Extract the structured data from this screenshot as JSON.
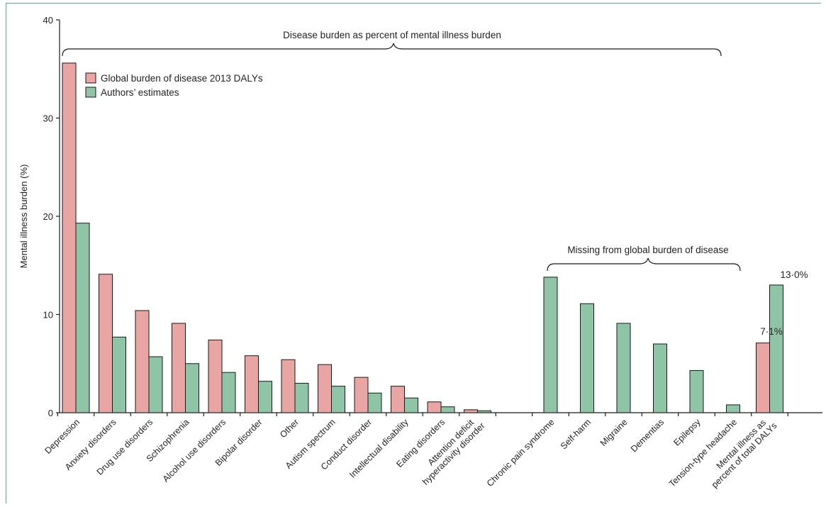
{
  "chart_data": {
    "type": "bar",
    "ylabel": "Mental illness burden (%)",
    "xlabel": "",
    "ylim": [
      0,
      40
    ],
    "yticks": [
      0,
      10,
      20,
      30,
      40
    ],
    "legend_position": "top-left",
    "colors": {
      "gbd": "#e8a5a3",
      "authors": "#8fc4a7",
      "stroke": "#1a1a1a"
    },
    "categories": [
      "Depression",
      "Anxiety disorders",
      "Drug use disorders",
      "Schizophrenia",
      "Alcohol use disorders",
      "Bipolar disorder",
      "Other",
      "Autism spectrum",
      "Conduct disorder",
      "Intellectual disability",
      "Eating disorders",
      "Attention deficit|hyperactivity disorder",
      "",
      "Chronic pain syndrome",
      "Self-harm",
      "Migraine",
      "Dementias",
      "Epilepsy",
      "Tension-type headache",
      "Mental illness as|percent of total DALYs"
    ],
    "series": [
      {
        "name": "Global burden of disease 2013 DALYs",
        "values": [
          35.6,
          14.1,
          10.4,
          9.1,
          7.4,
          5.8,
          5.4,
          4.9,
          3.6,
          2.7,
          1.1,
          0.3,
          null,
          null,
          null,
          null,
          null,
          null,
          null,
          7.1
        ]
      },
      {
        "name": "Authors’ estimates",
        "values": [
          19.3,
          7.7,
          5.7,
          5.0,
          4.1,
          3.2,
          3.0,
          2.7,
          2.0,
          1.5,
          0.6,
          0.2,
          null,
          13.8,
          11.1,
          9.1,
          7.0,
          4.3,
          0.8,
          13.0
        ]
      }
    ],
    "annotations": {
      "bracket_main": "Disease burden as percent of mental illness burden",
      "bracket_missing": "Missing from global burden of disease",
      "label_gbd_total": "7·1%",
      "label_authors_total": "13·0%"
    }
  }
}
